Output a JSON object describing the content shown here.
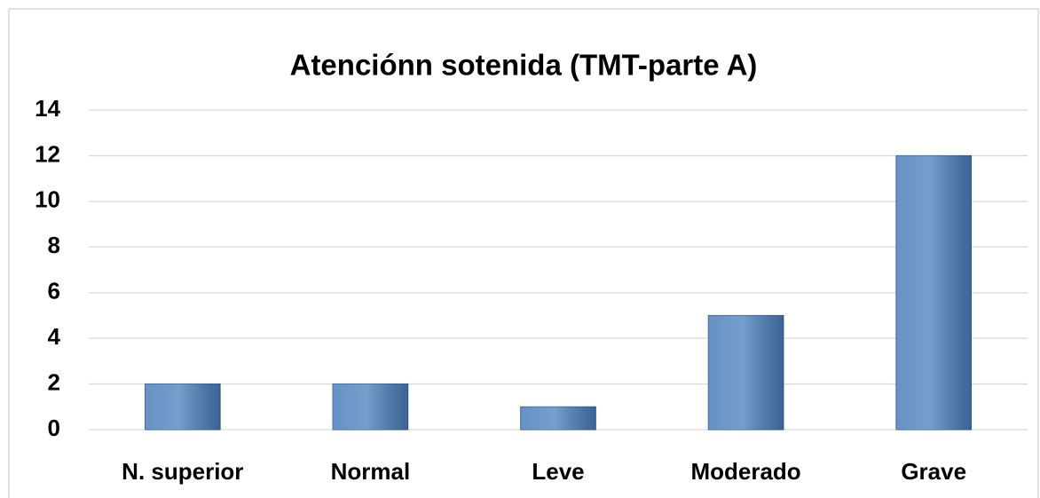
{
  "chart_data": {
    "type": "bar",
    "title": "Atenciónn sotenida (TMT-parte A)",
    "categories": [
      "N. superior",
      "Normal",
      "Leve",
      "Moderado",
      "Grave"
    ],
    "values": [
      2,
      2,
      1,
      5,
      12
    ],
    "color": "#4a7ebb",
    "ylim": [
      0,
      14
    ],
    "yticks": [
      0,
      2,
      4,
      6,
      8,
      10,
      12,
      14
    ],
    "grid": true
  }
}
